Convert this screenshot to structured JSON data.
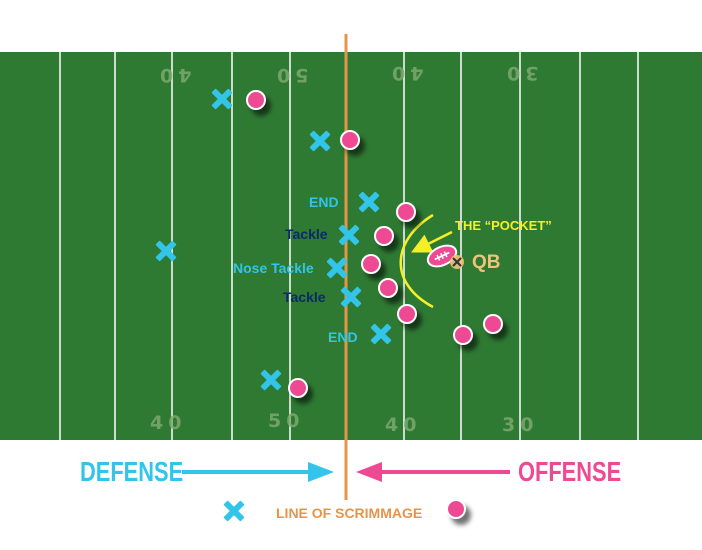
{
  "field": {
    "grass_color": "#2f7a33",
    "line_color": "#ffffff",
    "numbers_top": [
      "40",
      "50",
      "40",
      "30"
    ],
    "numbers_bottom": [
      "40",
      "50",
      "40",
      "30"
    ]
  },
  "line_of_scrimmage": {
    "label": "LINE OF SCRIMMAGE",
    "color": "#e6944a"
  },
  "defense": {
    "label": "DEFENSE",
    "color": "#33c4ea",
    "marker": "x-mark-icon",
    "position_labels": {
      "end_top": "END",
      "tackle_top": "Tackle",
      "nose_tackle": "Nose Tackle",
      "tackle_bottom": "Tackle",
      "end_bottom": "END"
    }
  },
  "offense": {
    "label": "OFFENSE",
    "color": "#ee4a93",
    "marker": "dot-icon"
  },
  "pocket": {
    "label": "THE “POCKET”",
    "color": "#f5ef2a"
  },
  "quarterback": {
    "label": "QB",
    "color": "#f1c27a",
    "icon": "football-icon"
  }
}
